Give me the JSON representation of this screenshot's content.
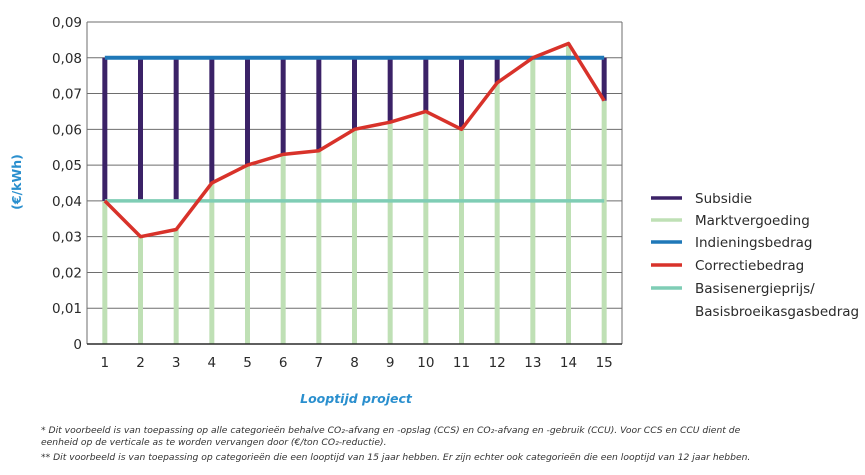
{
  "chart_data": {
    "type": "bar",
    "xlabel": "Looptijd project",
    "ylabel": "(€/kWh)",
    "ylim": [
      0,
      0.09
    ],
    "categories": [
      "1",
      "2",
      "3",
      "4",
      "5",
      "6",
      "7",
      "8",
      "9",
      "10",
      "11",
      "12",
      "13",
      "14",
      "15"
    ],
    "y_tick_labels": [
      "0",
      "0,01",
      "0,02",
      "0,03",
      "0,04",
      "0,05",
      "0,06",
      "0,07",
      "0,08",
      "0,09"
    ],
    "y_tick_values": [
      0,
      0.01,
      0.02,
      0.03,
      0.04,
      0.05,
      0.06,
      0.07,
      0.08,
      0.09
    ],
    "grid": true,
    "legend_position": "right",
    "series": [
      {
        "name": "Subsidie",
        "kind": "bar",
        "color": "#3b2267",
        "bottom": [
          0.04,
          0.04,
          0.04,
          0.045,
          0.05,
          0.053,
          0.054,
          0.06,
          0.062,
          0.065,
          0.06,
          0.073,
          0.08,
          0.08,
          0.068
        ],
        "top": [
          0.08,
          0.08,
          0.08,
          0.08,
          0.08,
          0.08,
          0.08,
          0.08,
          0.08,
          0.08,
          0.08,
          0.08,
          0.08,
          0.08,
          0.08
        ]
      },
      {
        "name": "Marktvergoeding",
        "kind": "bar",
        "color": "#bfe0b5",
        "values": [
          0.04,
          0.03,
          0.032,
          0.045,
          0.05,
          0.053,
          0.054,
          0.06,
          0.062,
          0.065,
          0.06,
          0.073,
          0.08,
          0.084,
          0.068
        ]
      },
      {
        "name": "Indieningsbedrag",
        "kind": "line",
        "color": "#1f78b8",
        "values": [
          0.08,
          0.08,
          0.08,
          0.08,
          0.08,
          0.08,
          0.08,
          0.08,
          0.08,
          0.08,
          0.08,
          0.08,
          0.08,
          0.08,
          0.08
        ]
      },
      {
        "name": "Correctiebedrag",
        "kind": "line",
        "color": "#d8322a",
        "values": [
          0.04,
          0.03,
          0.032,
          0.045,
          0.05,
          0.053,
          0.054,
          0.06,
          0.062,
          0.065,
          0.06,
          0.073,
          0.08,
          0.084,
          0.068
        ]
      },
      {
        "name": "Basisenergieprijs/ Basisbroeikasgasbedrag",
        "kind": "line",
        "color": "#7fcdb5",
        "values": [
          0.04,
          0.04,
          0.04,
          0.04,
          0.04,
          0.04,
          0.04,
          0.04,
          0.04,
          0.04,
          0.04,
          0.04,
          0.04,
          0.04,
          0.04
        ]
      }
    ]
  },
  "legend": [
    {
      "label": "Subsidie",
      "color": "#3b2267"
    },
    {
      "label": "Marktvergoeding",
      "color": "#bfe0b5"
    },
    {
      "label": "Indieningsbedrag",
      "color": "#1f78b8"
    },
    {
      "label": "Correctiebedrag",
      "color": "#d8322a"
    },
    {
      "label": "Basisenergieprijs/",
      "label2": "Basisbroeikasgasbedrag",
      "color": "#7fcdb5"
    }
  ],
  "footnotes": {
    "line1": "* Dit voorbeeld is van toepassing op alle categorieën behalve CO₂-afvang en -opslag (CCS) en CO₂-afvang en -gebruik (CCU). Voor CCS en CCU dient de",
    "line2": "eenheid op de verticale as te worden vervangen door (€/ton CO₂-reductie).",
    "line3": "** Dit voorbeeld is van toepassing op categorieën die een looptijd van 15 jaar hebben. Er zijn echter ook categorieën die een looptijd van 12 jaar hebben."
  }
}
